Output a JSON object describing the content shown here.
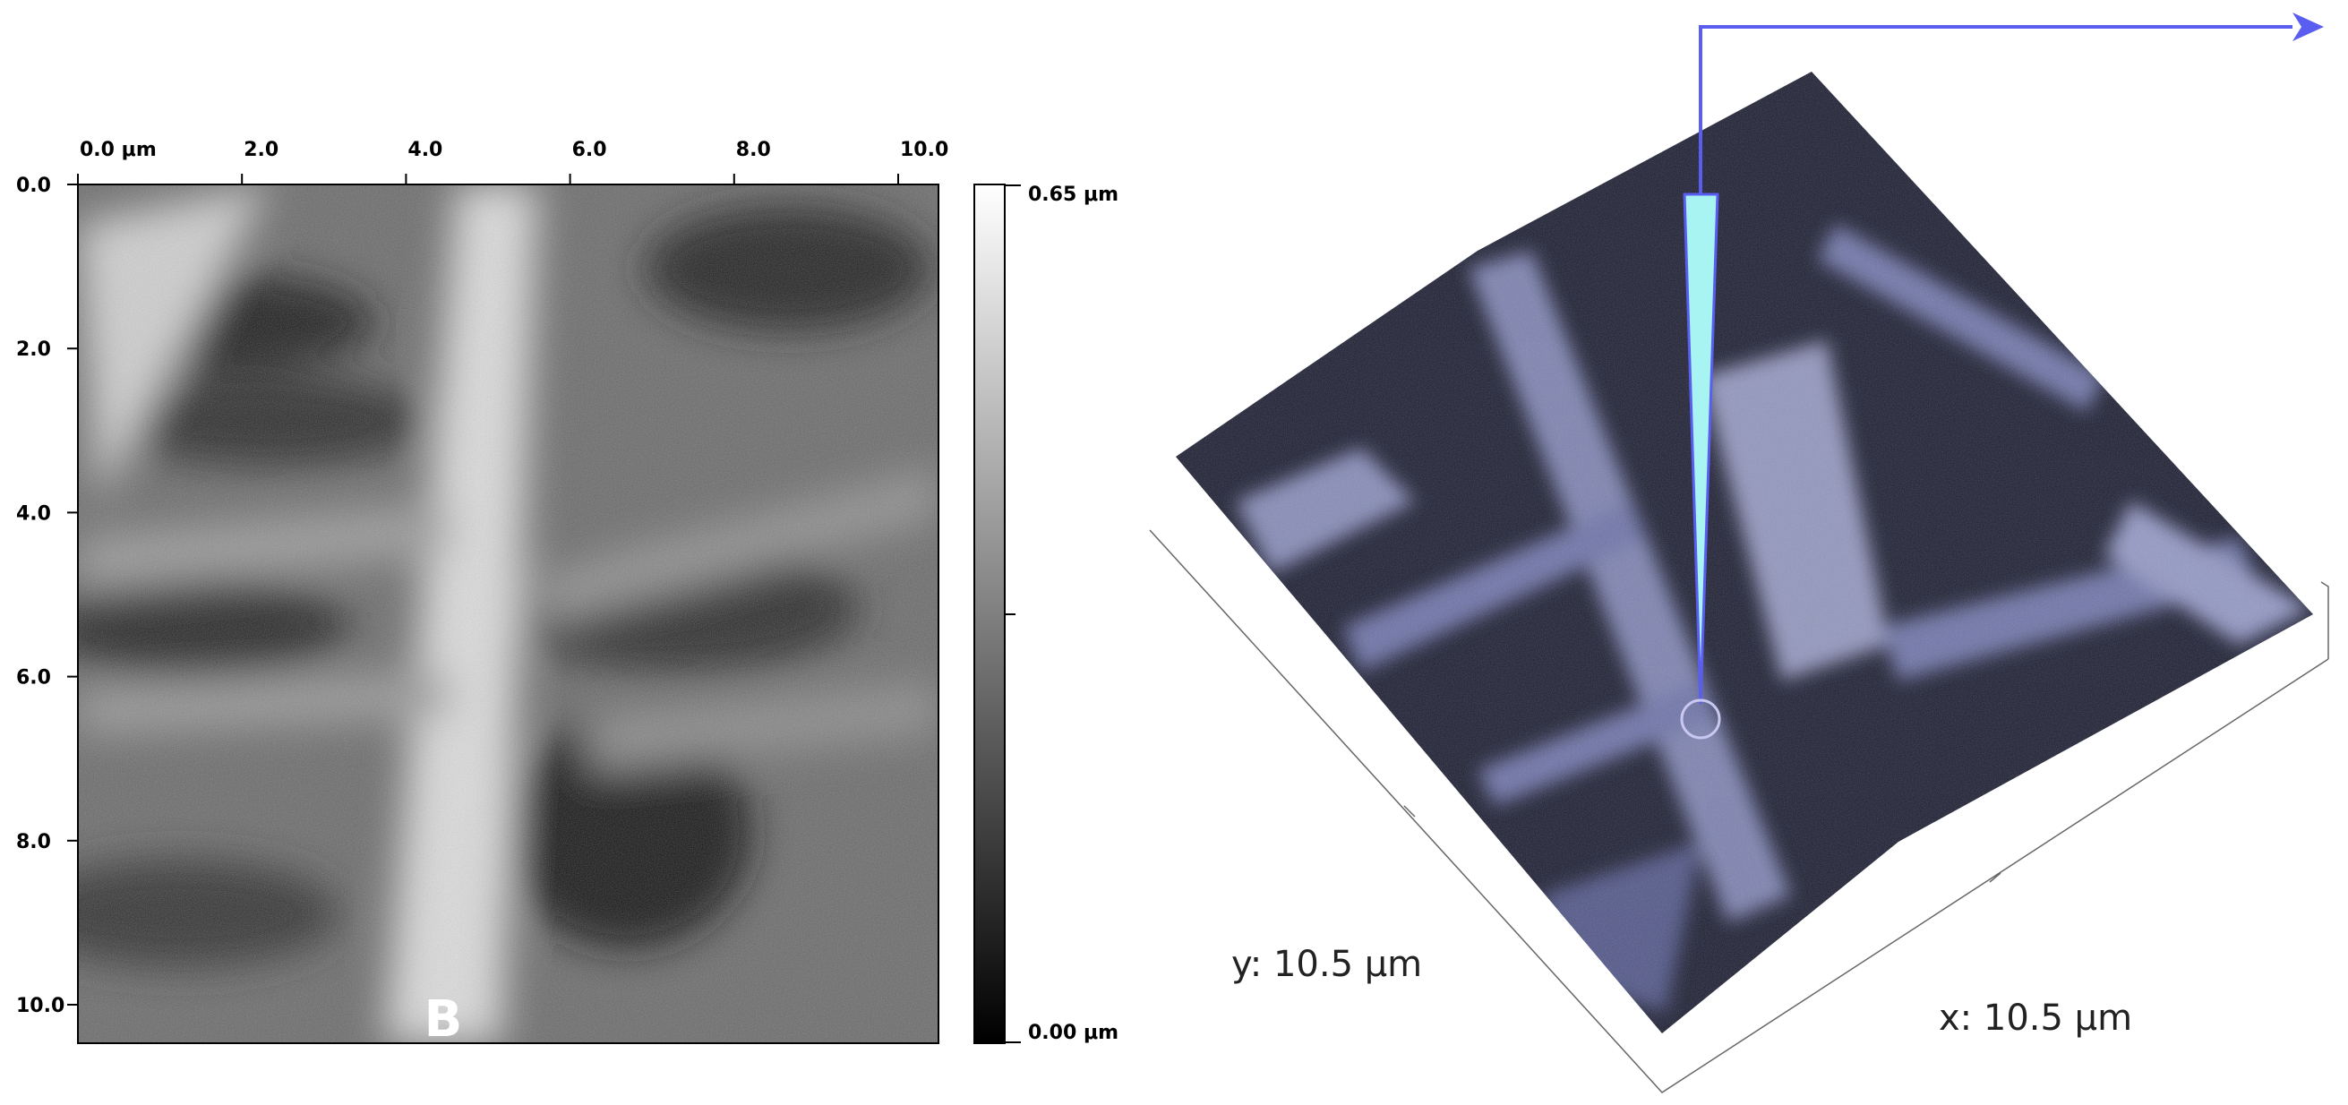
{
  "left_image": {
    "x_ticks": [
      "0.0 μm",
      "2.0",
      "4.0",
      "6.0",
      "8.0",
      "10.0"
    ],
    "y_ticks": [
      "0.0",
      "2.0",
      "4.0",
      "6.0",
      "8.0",
      "10.0"
    ],
    "colorbar": {
      "max": "0.65 μm",
      "min": "0.00 μm"
    },
    "panel_label": "B"
  },
  "right_image": {
    "y_axis_label": "y: 10.5 μm",
    "x_axis_label": "x: 10.5 μm"
  }
}
